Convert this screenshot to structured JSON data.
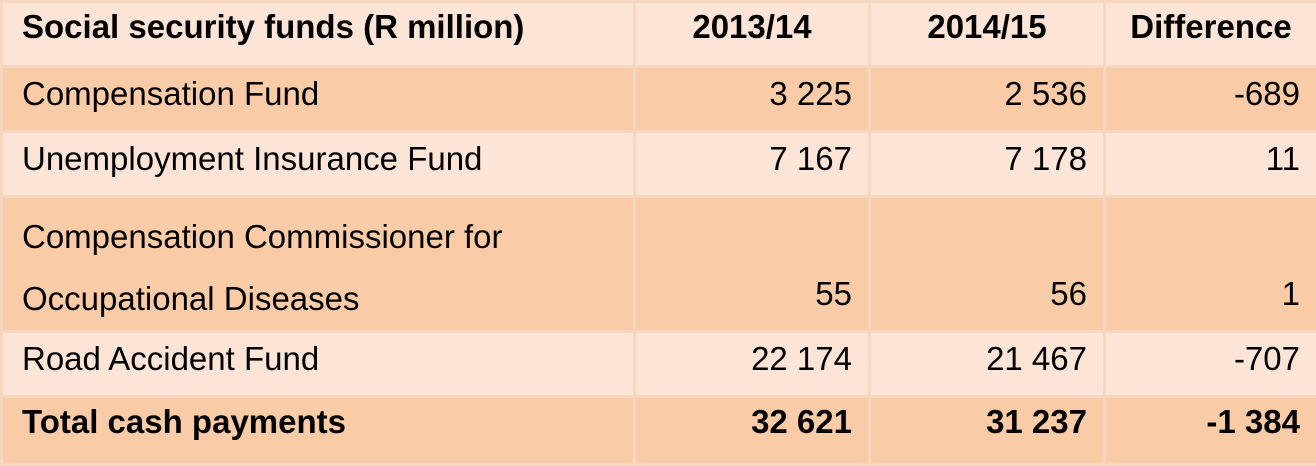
{
  "table": {
    "headers": [
      "Social security funds (R million)",
      "2013/14",
      "2014/15",
      "Difference"
    ],
    "rows": [
      {
        "label": "Compensation Fund",
        "y2013": "3 225",
        "y2014": "2 536",
        "diff": "-689"
      },
      {
        "label": "Unemployment Insurance Fund",
        "y2013": "7 167",
        "y2014": "7 178",
        "diff": "11"
      },
      {
        "label_line1": "Compensation Commissioner for",
        "label_line2": "Occupational Diseases",
        "y2013": "55",
        "y2014": "56",
        "diff": "1"
      },
      {
        "label": "Road Accident Fund",
        "y2013": "22 174",
        "y2014": "21 467",
        "diff": "-707"
      }
    ],
    "total": {
      "label": "Total cash payments",
      "y2013": "32 621",
      "y2014": "31 237",
      "diff": "-1 384"
    }
  },
  "colors": {
    "light_row": "#fce4d6",
    "dark_row": "#f9cba6",
    "border": "#f8d7c2"
  }
}
